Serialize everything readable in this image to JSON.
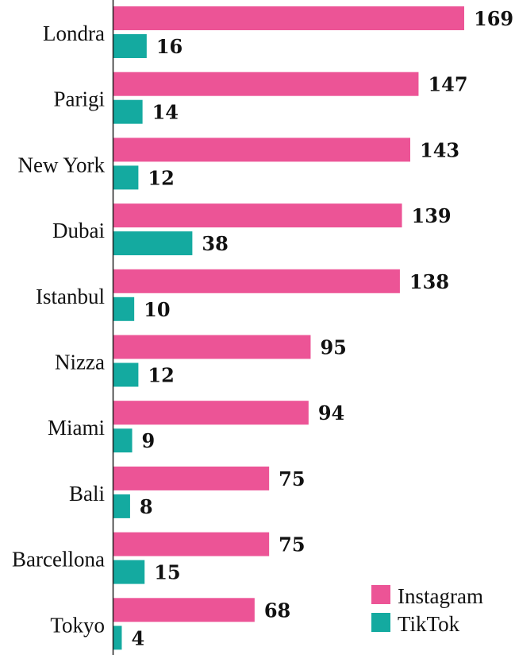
{
  "chart_data": {
    "type": "bar",
    "orientation": "horizontal",
    "categories": [
      "Londra",
      "Parigi",
      "New York",
      "Dubai",
      "Istanbul",
      "Nizza",
      "Miami",
      "Bali",
      "Barcellona",
      "Tokyo"
    ],
    "series": [
      {
        "name": "Instagram",
        "color": "#ec5496",
        "values": [
          169,
          147,
          143,
          139,
          138,
          95,
          94,
          75,
          75,
          68
        ]
      },
      {
        "name": "TikTok",
        "color": "#14aaa0",
        "values": [
          16,
          14,
          12,
          38,
          10,
          12,
          9,
          8,
          15,
          4
        ]
      }
    ],
    "title": "",
    "xlabel": "",
    "ylabel": "",
    "xlim": [
      0,
      169
    ],
    "grid": false,
    "legend": "bottom-right"
  }
}
